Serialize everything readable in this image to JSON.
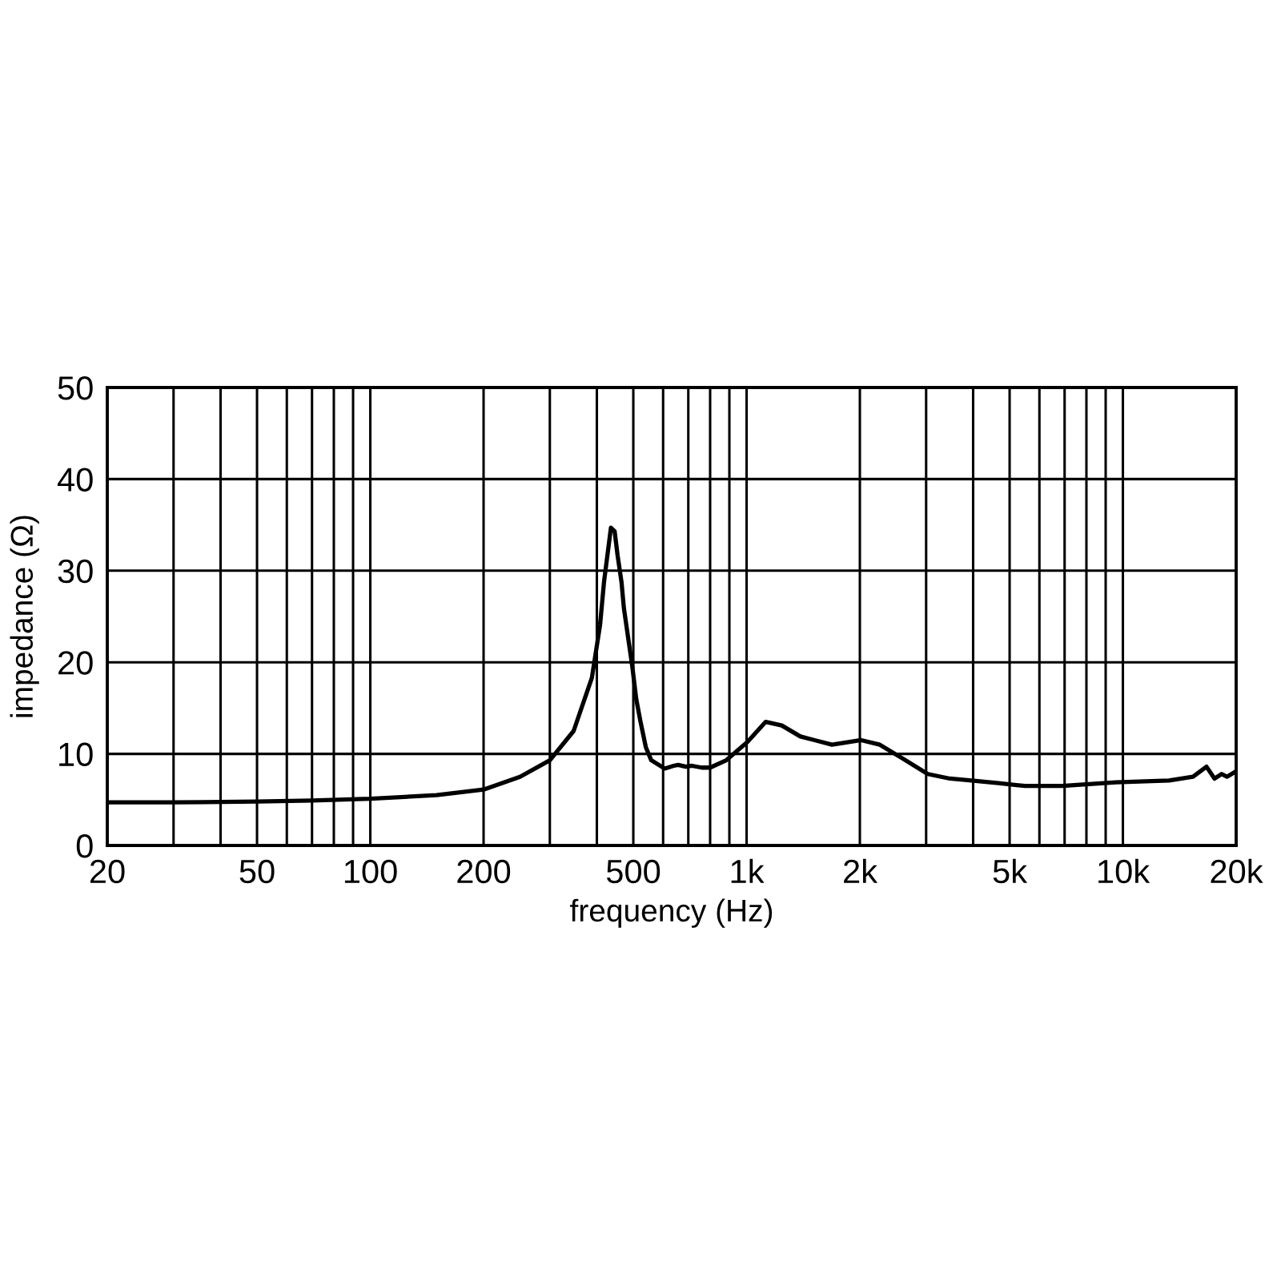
{
  "chart_data": {
    "type": "line",
    "xlabel": "frequency (Hz)",
    "ylabel": "impedance (Ω)",
    "log": "x",
    "grid": true,
    "line_style": "solid",
    "xlim": [
      20,
      20000
    ],
    "ylim": [
      0,
      50
    ],
    "xticks": [
      20,
      {
        "value": 30,
        "label": null
      },
      {
        "value": 40,
        "label": null
      },
      50,
      {
        "value": 60,
        "label": null
      },
      {
        "value": 70,
        "label": null
      },
      {
        "value": 80,
        "label": null
      },
      {
        "value": 90,
        "label": null
      },
      100,
      200,
      {
        "value": 300,
        "label": null
      },
      {
        "value": 400,
        "label": null
      },
      500,
      {
        "value": 600,
        "label": null
      },
      {
        "value": 700,
        "label": null
      },
      {
        "value": 800,
        "label": null
      },
      {
        "value": 900,
        "label": null
      },
      {
        "value": 1000,
        "label": "1k"
      },
      {
        "value": 2000,
        "label": "2k"
      },
      {
        "value": 3000,
        "label": null
      },
      {
        "value": 4000,
        "label": null
      },
      {
        "value": 5000,
        "label": "5k"
      },
      {
        "value": 6000,
        "label": null
      },
      {
        "value": 7000,
        "label": null
      },
      {
        "value": 8000,
        "label": null
      },
      {
        "value": 9000,
        "label": null
      },
      {
        "value": 10000,
        "label": "10k"
      },
      {
        "value": 20000,
        "label": "20k"
      }
    ],
    "yticks": [
      0,
      10,
      20,
      30,
      40,
      50
    ],
    "series": [
      {
        "color": "#000000",
        "x": [
          20,
          30,
          50,
          70,
          100,
          150,
          200,
          250,
          300,
          347,
          388,
          408,
          418,
          436,
          446,
          454,
          465,
          472,
          497,
          509,
          522,
          540,
          558,
          606,
          640,
          658,
          690,
          716,
          760,
          800,
          883,
          1005,
          1124,
          1240,
          1390,
          1686,
          2016,
          2260,
          2575,
          3030,
          3470,
          3960,
          4670,
          5490,
          6900,
          9580,
          13260,
          15360,
          16680,
          17520,
          18300,
          18900,
          20000
        ],
        "values": [
          4.7,
          4.7,
          4.8,
          4.9,
          5.1,
          5.5,
          6.1,
          7.5,
          9.3,
          12.5,
          18.3,
          24.1,
          28.8,
          34.7,
          34.3,
          31.7,
          28.8,
          25.9,
          19.5,
          16.0,
          13.6,
          10.7,
          9.3,
          8.4,
          8.7,
          8.8,
          8.6,
          8.7,
          8.5,
          8.5,
          9.3,
          11.3,
          13.5,
          13.1,
          11.9,
          11.0,
          11.5,
          11.0,
          9.6,
          7.8,
          7.3,
          7.1,
          6.8,
          6.5,
          6.5,
          6.9,
          7.1,
          7.5,
          8.6,
          7.3,
          7.8,
          7.5,
          8.1
        ]
      }
    ]
  }
}
